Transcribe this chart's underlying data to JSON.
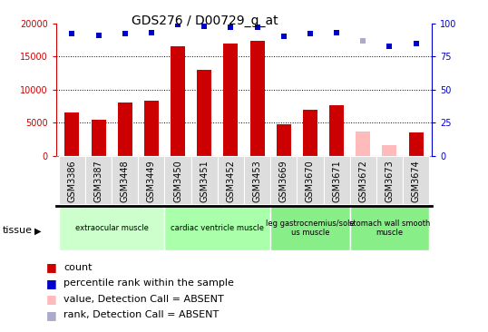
{
  "title": "GDS276 / D00729_g_at",
  "samples": [
    "GSM3386",
    "GSM3387",
    "GSM3448",
    "GSM3449",
    "GSM3450",
    "GSM3451",
    "GSM3452",
    "GSM3453",
    "GSM3669",
    "GSM3670",
    "GSM3671",
    "GSM3672",
    "GSM3673",
    "GSM3674"
  ],
  "bar_values": [
    6600,
    5500,
    8000,
    8300,
    16500,
    13000,
    17000,
    17400,
    4800,
    7000,
    7700,
    3700,
    1600,
    3500
  ],
  "bar_colors": [
    "#cc0000",
    "#cc0000",
    "#cc0000",
    "#cc0000",
    "#cc0000",
    "#cc0000",
    "#cc0000",
    "#cc0000",
    "#cc0000",
    "#cc0000",
    "#cc0000",
    "#ffbbbb",
    "#ffbbbb",
    "#cc0000"
  ],
  "rank_values": [
    92,
    91,
    92,
    93,
    99,
    98,
    97,
    97,
    90,
    92,
    93,
    87,
    83,
    85
  ],
  "rank_colors": [
    "#0000cc",
    "#0000cc",
    "#0000cc",
    "#0000cc",
    "#0000cc",
    "#0000cc",
    "#0000cc",
    "#0000cc",
    "#0000cc",
    "#0000cc",
    "#0000cc",
    "#aaaacc",
    "#0000cc",
    "#0000cc"
  ],
  "tissue_groups": [
    {
      "label": "extraocular muscle",
      "start": 0,
      "end": 3,
      "color": "#ccffcc"
    },
    {
      "label": "cardiac ventricle muscle",
      "start": 4,
      "end": 7,
      "color": "#aaffaa"
    },
    {
      "label": "leg gastrocnemius/sole\nus muscle",
      "start": 8,
      "end": 10,
      "color": "#88ee88"
    },
    {
      "label": "stomach wall smooth\nmuscle",
      "start": 11,
      "end": 13,
      "color": "#88ee88"
    }
  ],
  "ylim_left": [
    0,
    20000
  ],
  "ylim_right": [
    0,
    100
  ],
  "yticks_left": [
    0,
    5000,
    10000,
    15000,
    20000
  ],
  "yticks_right": [
    0,
    25,
    50,
    75,
    100
  ],
  "bar_width": 0.55,
  "cell_color": "#dddddd",
  "cell_edge_color": "#ffffff",
  "background_color": "#ffffff",
  "left_color": "#cc0000",
  "right_color": "#0000cc",
  "grid_color": "#000000",
  "title_fontsize": 10,
  "tick_fontsize": 7,
  "label_fontsize": 7,
  "legend_fontsize": 8
}
